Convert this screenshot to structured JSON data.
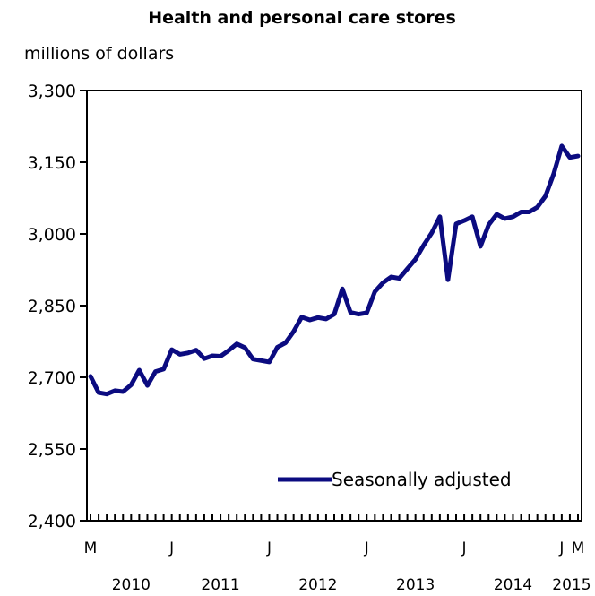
{
  "chart_data": {
    "type": "line",
    "title": "Health and personal care stores",
    "ylabel": "millions of dollars",
    "xlabel": "",
    "ylim": [
      2400,
      3300
    ],
    "yticks": [
      2400,
      2550,
      2700,
      2850,
      3000,
      3150,
      3300
    ],
    "ytick_labels": [
      "2,400",
      "2,550",
      "2,700",
      "2,850",
      "3,000",
      "3,150",
      "3,300"
    ],
    "grid": false,
    "legend_position": "bottom-right",
    "month_labels": [
      {
        "index": 0,
        "label": "M"
      },
      {
        "index": 10,
        "label": "J"
      },
      {
        "index": 22,
        "label": "J"
      },
      {
        "index": 34,
        "label": "J"
      },
      {
        "index": 46,
        "label": "J"
      },
      {
        "index": 58,
        "label": "J"
      },
      {
        "index": 60,
        "label": "M"
      }
    ],
    "year_labels": [
      {
        "from": 0,
        "to": 10,
        "label": "2010"
      },
      {
        "from": 10,
        "to": 22,
        "label": "2011"
      },
      {
        "from": 22,
        "to": 34,
        "label": "2012"
      },
      {
        "from": 34,
        "to": 46,
        "label": "2013"
      },
      {
        "from": 46,
        "to": 58,
        "label": "2014"
      },
      {
        "from": 58,
        "to": 60,
        "label": "2015"
      }
    ],
    "series": [
      {
        "name": "Seasonally adjusted",
        "color": "#0b0b80",
        "values": [
          2702,
          2668,
          2665,
          2672,
          2670,
          2684,
          2715,
          2683,
          2712,
          2717,
          2758,
          2748,
          2751,
          2757,
          2739,
          2745,
          2744,
          2756,
          2770,
          2762,
          2738,
          2735,
          2732,
          2763,
          2772,
          2796,
          2826,
          2820,
          2825,
          2822,
          2832,
          2885,
          2836,
          2832,
          2835,
          2879,
          2898,
          2910,
          2907,
          2927,
          2947,
          2976,
          3002,
          3036,
          2904,
          3021,
          3028,
          3036,
          2974,
          3019,
          3041,
          3032,
          3036,
          3046,
          3046,
          3056,
          3079,
          3125,
          3184,
          3160,
          3163
        ]
      }
    ]
  }
}
